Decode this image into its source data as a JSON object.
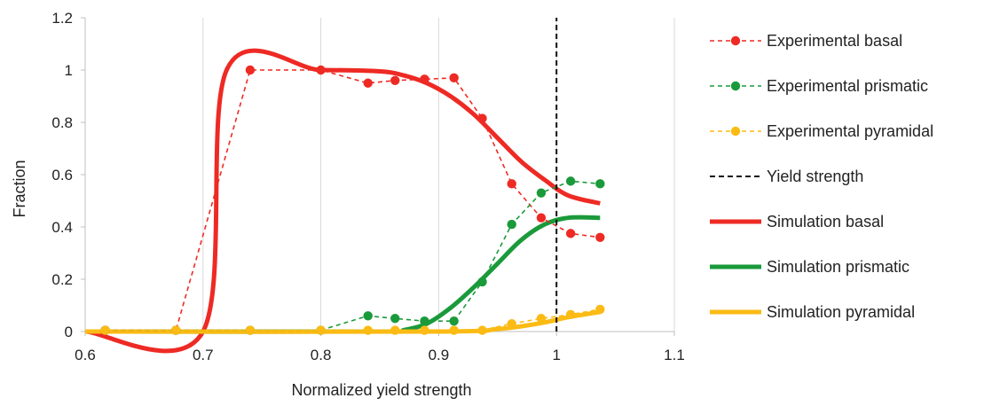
{
  "chart_data": {
    "type": "line",
    "xlabel": "Normalized yield strength",
    "ylabel": "Fraction",
    "xlim": [
      0.6,
      1.1
    ],
    "ylim": [
      0,
      1.2
    ],
    "xticks": [
      "0.6",
      "0.7",
      "0.8",
      "0.9",
      "1",
      "1.1"
    ],
    "yticks": [
      "0",
      "0.2",
      "0.4",
      "0.6",
      "0.8",
      "1",
      "1.2"
    ],
    "xtick_values": [
      0.6,
      0.7,
      0.8,
      0.9,
      1.0,
      1.1
    ],
    "ytick_values": [
      0,
      0.2,
      0.4,
      0.6,
      0.8,
      1.0,
      1.2
    ],
    "vertical_gridlines": true,
    "horizontal_gridlines": false,
    "legend_position": "right",
    "series": [
      {
        "name": "Experimental basal",
        "style": "dashed-markers",
        "color": "#ee2a24",
        "x": [
          0.617,
          0.677,
          0.74,
          0.8,
          0.84,
          0.863,
          0.888,
          0.913,
          0.937,
          0.962,
          0.987,
          1.012,
          1.037
        ],
        "y": [
          0.005,
          0.005,
          1.0,
          1.0,
          0.95,
          0.96,
          0.965,
          0.97,
          0.815,
          0.565,
          0.435,
          0.375,
          0.36
        ]
      },
      {
        "name": "Experimental prismatic",
        "style": "dashed-markers",
        "color": "#1a9a3a",
        "x": [
          0.617,
          0.677,
          0.74,
          0.8,
          0.84,
          0.863,
          0.888,
          0.913,
          0.937,
          0.962,
          0.987,
          1.012,
          1.037
        ],
        "y": [
          0.005,
          0.005,
          0.005,
          0.005,
          0.06,
          0.05,
          0.04,
          0.04,
          0.19,
          0.41,
          0.53,
          0.575,
          0.565
        ]
      },
      {
        "name": "Experimental pyramidal",
        "style": "dashed-markers",
        "color": "#fbbb14",
        "x": [
          0.617,
          0.677,
          0.74,
          0.8,
          0.84,
          0.863,
          0.888,
          0.913,
          0.937,
          0.962,
          0.987,
          1.012,
          1.037
        ],
        "y": [
          0.005,
          0.005,
          0.005,
          0.005,
          0.005,
          0.005,
          0.005,
          0.005,
          0.005,
          0.03,
          0.05,
          0.065,
          0.085
        ]
      },
      {
        "name": "Yield strength",
        "style": "dashed-vertical",
        "color": "#111111",
        "x": [
          1.0,
          1.0
        ],
        "y": [
          0,
          1.2
        ]
      },
      {
        "name": "Simulation basal",
        "style": "thick-line",
        "color": "#ee2a24",
        "x": [
          0.6,
          0.7,
          0.72,
          0.8,
          0.85,
          0.87,
          0.89,
          0.91,
          0.93,
          0.95,
          0.97,
          0.99,
          1.01,
          1.037
        ],
        "y": [
          0,
          0,
          1.0,
          1.0,
          0.995,
          0.98,
          0.95,
          0.9,
          0.83,
          0.74,
          0.65,
          0.58,
          0.52,
          0.49
        ]
      },
      {
        "name": "Simulation prismatic",
        "style": "thick-line",
        "color": "#1a9a3a",
        "x": [
          0.6,
          0.86,
          0.87,
          0.89,
          0.91,
          0.93,
          0.95,
          0.97,
          0.99,
          1.01,
          1.037
        ],
        "y": [
          0,
          0,
          0.005,
          0.03,
          0.09,
          0.17,
          0.26,
          0.35,
          0.41,
          0.435,
          0.435
        ]
      },
      {
        "name": "Simulation pyramidal",
        "style": "thick-line",
        "color": "#fbbb14",
        "x": [
          0.6,
          0.9,
          0.95,
          0.97,
          0.99,
          1.01,
          1.037
        ],
        "y": [
          0,
          0,
          0.01,
          0.02,
          0.035,
          0.055,
          0.075
        ]
      }
    ]
  }
}
